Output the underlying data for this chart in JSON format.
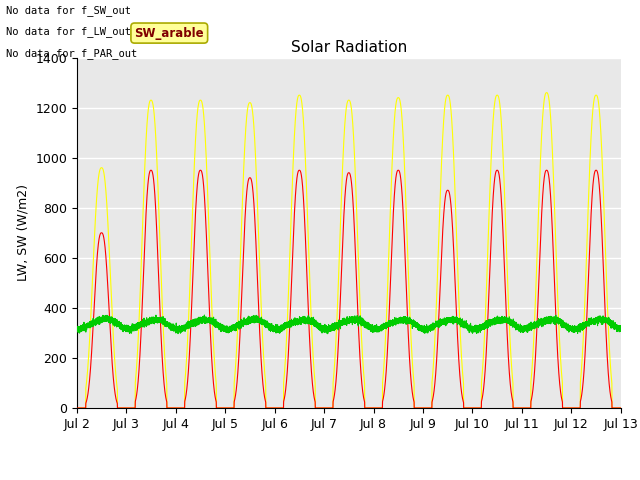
{
  "title": "Solar Radiation",
  "ylabel": "LW, SW (W/m2)",
  "ylim": [
    0,
    1400
  ],
  "yticks": [
    0,
    200,
    400,
    600,
    800,
    1000,
    1200,
    1400
  ],
  "xtick_labels": [
    "Jul 2",
    "Jul 3",
    "Jul 4",
    "Jul 5",
    "Jul 6",
    "Jul 7",
    "Jul 8",
    "Jul 9",
    "Jul 10",
    "Jul 11",
    "Jul 12",
    "Jul 13"
  ],
  "background_color": "#ffffff",
  "plot_bg_color": "#e8e8e8",
  "grid_color": "#ffffff",
  "annotations": [
    "No data for f_SW_out",
    "No data for f_LW_out",
    "No data for f_PAR_out"
  ],
  "annotation_color": "#000000",
  "tooltip_text": "SW_arable",
  "tooltip_color": "#800000",
  "tooltip_bg": "#ffff99",
  "sw_color": "#ff0000",
  "lw_color": "#00cc00",
  "par_color": "#ffff00",
  "num_days": 11,
  "lw_baseline": 340,
  "sw_peak": 950,
  "par_peak": 1250
}
